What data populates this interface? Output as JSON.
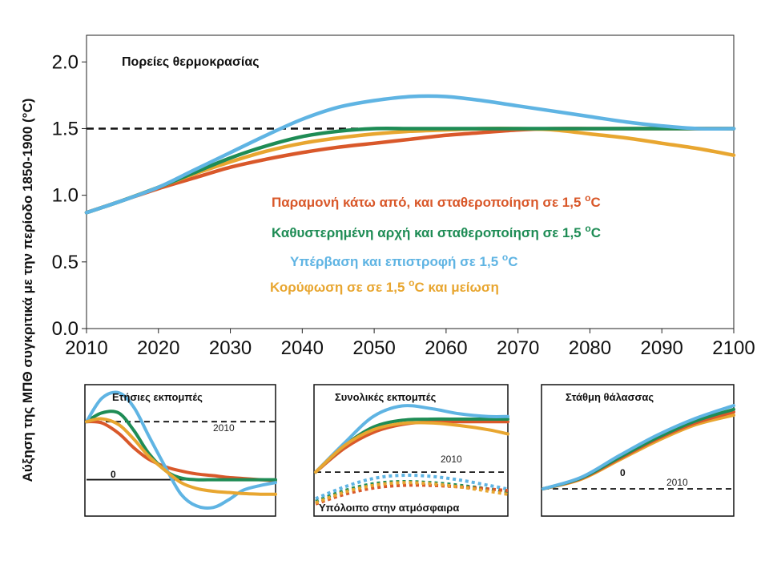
{
  "ylabel": "Αύξηση της ΜΠΘ συγκριτικά με την περίοδο 1850-1900 (°C)",
  "colors": {
    "red": "#d9582a",
    "green": "#1e8c55",
    "blue": "#5fb4e3",
    "yellow": "#e8a630"
  },
  "chart_data": [
    {
      "type": "line",
      "title": "Πορείες θερμοκρασίας",
      "xlabel": "",
      "ylabel": "Αύξηση της ΜΠΘ συγκριτικά με την περίοδο 1850-1900 (°C)",
      "xlim": [
        2010,
        2100
      ],
      "ylim": [
        0,
        2.2
      ],
      "x_ticks": [
        2010,
        2020,
        2030,
        2040,
        2050,
        2060,
        2070,
        2080,
        2090,
        2100
      ],
      "y_ticks": [
        0.0,
        0.5,
        1.0,
        1.5,
        2.0
      ],
      "y_tick_labels": [
        "0.0",
        "0.5",
        "1.0",
        "1.5",
        "2.0"
      ],
      "reference_line": {
        "y": 1.5,
        "from_x": 2010,
        "to_x": 2060,
        "style": "dashed"
      },
      "legend_position": "center-right",
      "series": [
        {
          "name": "Παραμονή κάτω από, και σταθεροποίηση σε 1,5 °C",
          "legend_text": "Παραμονή κάτω από, και σταθεροποίηση σε 1,5 ",
          "legend_unit_sup": "o",
          "legend_unit": "C",
          "legend_suffix": "",
          "color_key": "red",
          "x": [
            2010,
            2015,
            2020,
            2025,
            2030,
            2035,
            2040,
            2045,
            2050,
            2055,
            2060,
            2065,
            2070,
            2075,
            2080,
            2085,
            2090,
            2095,
            2100
          ],
          "y": [
            0.87,
            0.96,
            1.05,
            1.13,
            1.21,
            1.27,
            1.32,
            1.36,
            1.39,
            1.42,
            1.45,
            1.47,
            1.49,
            1.5,
            1.5,
            1.5,
            1.5,
            1.5,
            1.5
          ]
        },
        {
          "name": "Καθυστερημένη αρχή και σταθεροποίηση σε 1,5 °C",
          "legend_text": "Καθυστερημένη αρχή και σταθεροποίηση σε 1,5 ",
          "legend_unit_sup": "o",
          "legend_unit": "C",
          "legend_suffix": "",
          "color_key": "green",
          "x": [
            2010,
            2015,
            2020,
            2025,
            2030,
            2035,
            2040,
            2045,
            2050,
            2055,
            2060,
            2065,
            2070,
            2075,
            2080,
            2085,
            2090,
            2095,
            2100
          ],
          "y": [
            0.87,
            0.96,
            1.06,
            1.17,
            1.28,
            1.37,
            1.44,
            1.48,
            1.5,
            1.5,
            1.5,
            1.5,
            1.5,
            1.5,
            1.5,
            1.5,
            1.5,
            1.5,
            1.5
          ]
        },
        {
          "name": "Υπέρβαση και επιστροφή σε 1,5 °C",
          "legend_text": "Υπέρβαση και επιστροφή σε 1,5 ",
          "legend_unit_sup": "o",
          "legend_unit": "C",
          "legend_suffix": "",
          "color_key": "blue",
          "x": [
            2010,
            2015,
            2020,
            2025,
            2030,
            2035,
            2040,
            2045,
            2050,
            2055,
            2060,
            2065,
            2070,
            2075,
            2080,
            2085,
            2090,
            2095,
            2100
          ],
          "y": [
            0.87,
            0.96,
            1.06,
            1.19,
            1.32,
            1.45,
            1.57,
            1.66,
            1.71,
            1.74,
            1.74,
            1.71,
            1.67,
            1.63,
            1.59,
            1.55,
            1.52,
            1.5,
            1.5
          ]
        },
        {
          "name": "Κορύφωση σε σε 1,5 °C και μείωση",
          "legend_text": "Κορύφωση σε σε 1,5 ",
          "legend_unit_sup": "o",
          "legend_unit": "C",
          "legend_suffix": " και μείωση",
          "color_key": "yellow",
          "x": [
            2010,
            2015,
            2020,
            2025,
            2030,
            2035,
            2040,
            2045,
            2050,
            2055,
            2060,
            2065,
            2070,
            2075,
            2080,
            2085,
            2090,
            2095,
            2100
          ],
          "y": [
            0.87,
            0.96,
            1.06,
            1.16,
            1.25,
            1.33,
            1.39,
            1.43,
            1.46,
            1.48,
            1.49,
            1.5,
            1.5,
            1.49,
            1.46,
            1.43,
            1.39,
            1.35,
            1.3
          ]
        }
      ]
    },
    {
      "type": "line",
      "title": "Ετήσιες εκπομπές",
      "xlim": [
        0,
        1
      ],
      "ylim": [
        -0.6,
        1.5
      ],
      "labels": {
        "zero": "0",
        "ref": "2010"
      },
      "reference_lines": [
        {
          "label": "2010",
          "y": 1.0,
          "style": "dashed"
        },
        {
          "label": "0",
          "y": 0.0,
          "style": "solid"
        }
      ],
      "series": [
        {
          "color_key": "red",
          "x": [
            0,
            0.08,
            0.17,
            0.25,
            0.33,
            0.42,
            0.5,
            0.58,
            0.67,
            0.75,
            0.83,
            0.92,
            1
          ],
          "y": [
            1.0,
            0.98,
            0.8,
            0.55,
            0.35,
            0.22,
            0.15,
            0.1,
            0.07,
            0.04,
            0.02,
            0.0,
            -0.02
          ]
        },
        {
          "color_key": "green",
          "x": [
            0,
            0.08,
            0.17,
            0.25,
            0.33,
            0.42,
            0.5,
            0.58,
            0.67,
            0.75,
            0.83,
            0.92,
            1
          ],
          "y": [
            1.0,
            1.15,
            1.15,
            0.85,
            0.45,
            0.15,
            0.03,
            0.0,
            0.0,
            0.0,
            0.0,
            0.0,
            0.0
          ]
        },
        {
          "color_key": "blue",
          "x": [
            0,
            0.08,
            0.17,
            0.25,
            0.33,
            0.42,
            0.5,
            0.58,
            0.67,
            0.75,
            0.83,
            0.92,
            1
          ],
          "y": [
            1.0,
            1.4,
            1.5,
            1.25,
            0.75,
            0.2,
            -0.25,
            -0.45,
            -0.48,
            -0.35,
            -0.18,
            -0.1,
            -0.05
          ]
        },
        {
          "color_key": "yellow",
          "x": [
            0,
            0.08,
            0.17,
            0.25,
            0.33,
            0.42,
            0.5,
            0.58,
            0.67,
            0.75,
            0.83,
            0.92,
            1
          ],
          "y": [
            1.0,
            1.05,
            0.95,
            0.7,
            0.4,
            0.15,
            -0.05,
            -0.15,
            -0.2,
            -0.22,
            -0.24,
            -0.25,
            -0.25
          ]
        }
      ]
    },
    {
      "type": "line",
      "title": "Συνολικές εκπομπές",
      "xlim": [
        0,
        1
      ],
      "ylim": [
        -0.8,
        1.5
      ],
      "labels": {
        "ref": "2010",
        "residual": "Υπόλοιπο στην ατμόσφαιρα"
      },
      "reference_lines": [
        {
          "label": "2010",
          "y": 0.0,
          "style": "dashed"
        }
      ],
      "series": [
        {
          "color_key": "red",
          "x": [
            0,
            0.15,
            0.3,
            0.45,
            0.6,
            0.75,
            0.9,
            1
          ],
          "y": [
            0.0,
            0.45,
            0.75,
            0.9,
            0.95,
            0.95,
            0.95,
            0.95
          ]
        },
        {
          "color_key": "green",
          "x": [
            0,
            0.15,
            0.3,
            0.45,
            0.6,
            0.75,
            0.9,
            1
          ],
          "y": [
            0.0,
            0.5,
            0.85,
            0.98,
            1.0,
            1.0,
            1.0,
            1.0
          ]
        },
        {
          "color_key": "blue",
          "x": [
            0,
            0.15,
            0.3,
            0.45,
            0.6,
            0.75,
            0.9,
            1
          ],
          "y": [
            0.0,
            0.55,
            1.05,
            1.25,
            1.2,
            1.1,
            1.05,
            1.05
          ]
        },
        {
          "color_key": "yellow",
          "x": [
            0,
            0.15,
            0.3,
            0.45,
            0.6,
            0.75,
            0.9,
            1
          ],
          "y": [
            0.0,
            0.5,
            0.8,
            0.92,
            0.93,
            0.88,
            0.8,
            0.72
          ]
        },
        {
          "color_key": "green",
          "style": "dotted",
          "x": [
            0,
            0.15,
            0.3,
            0.45,
            0.6,
            0.75,
            0.9,
            1
          ],
          "y": [
            -0.55,
            -0.35,
            -0.22,
            -0.18,
            -0.2,
            -0.25,
            -0.32,
            -0.38
          ]
        },
        {
          "color_key": "blue",
          "style": "dotted",
          "x": [
            0,
            0.15,
            0.3,
            0.45,
            0.6,
            0.75,
            0.9,
            1
          ],
          "y": [
            -0.5,
            -0.28,
            -0.12,
            -0.06,
            -0.08,
            -0.15,
            -0.25,
            -0.32
          ]
        },
        {
          "color_key": "red",
          "style": "dotted",
          "x": [
            0,
            0.15,
            0.3,
            0.45,
            0.6,
            0.75,
            0.9,
            1
          ],
          "y": [
            -0.6,
            -0.42,
            -0.3,
            -0.25,
            -0.25,
            -0.28,
            -0.32,
            -0.35
          ]
        },
        {
          "color_key": "yellow",
          "style": "dotted",
          "x": [
            0,
            0.15,
            0.3,
            0.45,
            0.6,
            0.75,
            0.9,
            1
          ],
          "y": [
            -0.58,
            -0.38,
            -0.25,
            -0.2,
            -0.22,
            -0.28,
            -0.36,
            -0.42
          ]
        }
      ]
    },
    {
      "type": "line",
      "title": "Στάθμη θάλασσας",
      "xlim": [
        0,
        1
      ],
      "ylim": [
        -0.4,
        1.5
      ],
      "labels": {
        "zero": "0",
        "ref": "2010"
      },
      "reference_lines": [
        {
          "label": "2010",
          "y": 0.0,
          "style": "dashed"
        }
      ],
      "series": [
        {
          "color_key": "yellow",
          "x": [
            0,
            0.2,
            0.4,
            0.6,
            0.8,
            1
          ],
          "y": [
            0.0,
            0.15,
            0.45,
            0.75,
            1.0,
            1.15
          ]
        },
        {
          "color_key": "red",
          "x": [
            0,
            0.2,
            0.4,
            0.6,
            0.8,
            1
          ],
          "y": [
            0.0,
            0.16,
            0.47,
            0.78,
            1.03,
            1.2
          ]
        },
        {
          "color_key": "green",
          "x": [
            0,
            0.2,
            0.4,
            0.6,
            0.8,
            1
          ],
          "y": [
            0.0,
            0.17,
            0.49,
            0.8,
            1.06,
            1.24
          ]
        },
        {
          "color_key": "blue",
          "x": [
            0,
            0.2,
            0.4,
            0.6,
            0.8,
            1
          ],
          "y": [
            0.0,
            0.18,
            0.52,
            0.84,
            1.1,
            1.3
          ]
        }
      ]
    }
  ]
}
